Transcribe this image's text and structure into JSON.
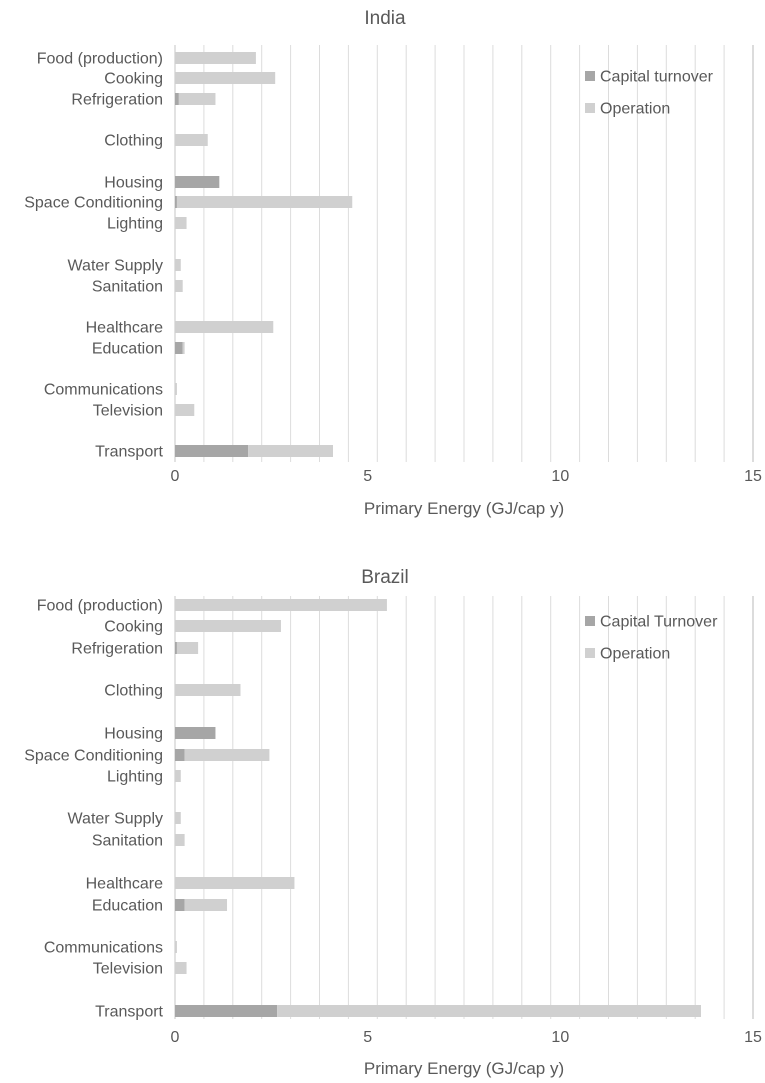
{
  "chart_data": [
    {
      "type": "bar",
      "orientation": "horizontal",
      "stacked": true,
      "title": "India",
      "xlabel": "Primary Energy (GJ/cap y)",
      "xlim": [
        0,
        15
      ],
      "xticks": [
        0,
        5,
        10,
        15
      ],
      "grid": true,
      "legend_position": "top-right",
      "categories": [
        "Food (production)",
        "Cooking",
        "Refrigeration",
        "Clothing",
        "Housing",
        "Space Conditioning",
        "Lighting",
        "Water Supply",
        "Sanitation",
        "Healthcare",
        "Education",
        "Communications",
        "Television",
        "Transport"
      ],
      "series": [
        {
          "name": "Capital turnover",
          "color": "#a6a6a6",
          "values": [
            0,
            0,
            0.1,
            0,
            1.15,
            0.05,
            0,
            0,
            0,
            0,
            0.2,
            0,
            0,
            1.9
          ]
        },
        {
          "name": "Operation",
          "color": "#d0d0d0",
          "values": [
            2.1,
            2.6,
            0.95,
            0.85,
            0,
            4.55,
            0.3,
            0.15,
            0.2,
            2.55,
            0.05,
            0.05,
            0.5,
            2.2
          ]
        }
      ]
    },
    {
      "type": "bar",
      "orientation": "horizontal",
      "stacked": true,
      "title": "Brazil",
      "xlabel": "Primary Energy (GJ/cap y)",
      "xlim": [
        0,
        15
      ],
      "xticks": [
        0,
        5,
        10,
        15
      ],
      "grid": true,
      "legend_position": "top-right",
      "categories": [
        "Food (production)",
        "Cooking",
        "Refrigeration",
        "Clothing",
        "Housing",
        "Space Conditioning",
        "Lighting",
        "Water Supply",
        "Sanitation",
        "Healthcare",
        "Education",
        "Communications",
        "Television",
        "Transport"
      ],
      "series": [
        {
          "name": "Capital Turnover",
          "color": "#a6a6a6",
          "values": [
            0,
            0,
            0.05,
            0,
            1.05,
            0.25,
            0,
            0,
            0,
            0,
            0.25,
            0,
            0,
            2.65
          ]
        },
        {
          "name": "Operation",
          "color": "#d0d0d0",
          "values": [
            5.5,
            2.75,
            0.55,
            1.7,
            0,
            2.2,
            0.15,
            0.15,
            0.25,
            3.1,
            1.1,
            0.05,
            0.3,
            11.0
          ]
        }
      ]
    }
  ]
}
